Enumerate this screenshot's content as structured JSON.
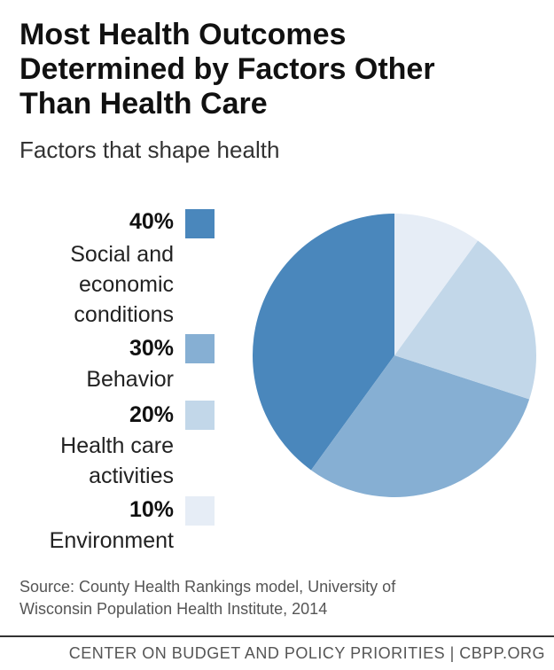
{
  "title_lines": [
    "Most Health Outcomes",
    "Determined by Factors Other",
    "Than Health Care"
  ],
  "subtitle": "Factors that shape health",
  "chart_data": {
    "type": "pie",
    "title": "Most Health Outcomes Determined by Factors Other Than Health Care",
    "subtitle": "Factors that shape health",
    "slices": [
      {
        "label": "Social and economic conditions",
        "value": 40,
        "value_label": "40%",
        "label_lines": [
          "Social and",
          "economic",
          "conditions"
        ],
        "color": "#4a87bc"
      },
      {
        "label": "Behavior",
        "value": 30,
        "value_label": "30%",
        "label_lines": [
          "Behavior"
        ],
        "color": "#86afd3"
      },
      {
        "label": "Health care activities",
        "value": 20,
        "value_label": "20%",
        "label_lines": [
          "Health care",
          "activities"
        ],
        "color": "#c2d7e9"
      },
      {
        "label": "Environment",
        "value": 10,
        "value_label": "10%",
        "label_lines": [
          "Environment"
        ],
        "color": "#e6edf6"
      }
    ]
  },
  "source_lines": [
    "Source: County Health Rankings model, University of",
    "Wisconsin Population Health Institute, 2014"
  ],
  "footer": "CENTER ON BUDGET AND POLICY PRIORITIES | CBPP.ORG"
}
